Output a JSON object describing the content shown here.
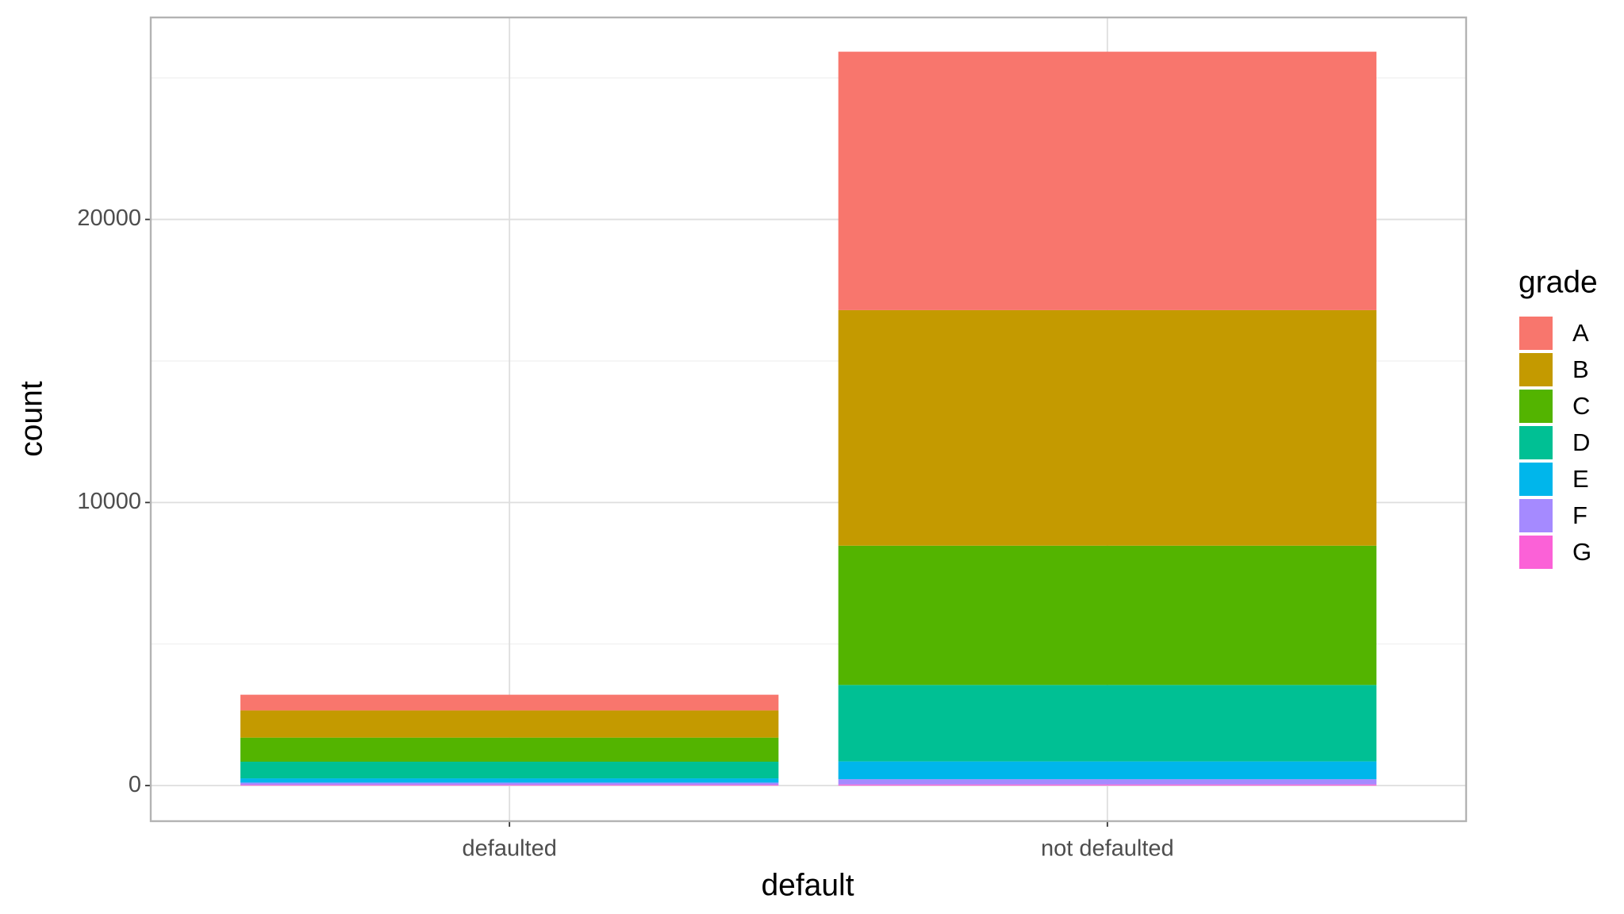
{
  "chart_data": {
    "type": "stacked_bar",
    "x_label": "default",
    "y_label": "count",
    "legend_title": "grade",
    "categories": [
      "defaulted",
      "not defaulted"
    ],
    "series": [
      {
        "name": "A",
        "color": "#F8766D",
        "values": [
          555,
          9130
        ]
      },
      {
        "name": "B",
        "color": "#C49A00",
        "values": [
          960,
          8320
        ]
      },
      {
        "name": "C",
        "color": "#53B400",
        "values": [
          850,
          4920
        ]
      },
      {
        "name": "D",
        "color": "#00C094",
        "values": [
          590,
          2700
        ]
      },
      {
        "name": "E",
        "color": "#00B6EB",
        "values": [
          150,
          630
        ]
      },
      {
        "name": "F",
        "color": "#A58AFF",
        "values": [
          75,
          185
        ]
      },
      {
        "name": "G",
        "color": "#FB61D7",
        "values": [
          30,
          40
        ]
      }
    ],
    "ylim": [
      -1257,
      27135
    ],
    "yticks": [
      0,
      10000,
      20000
    ],
    "minor_yticks": [
      5000,
      15000,
      25000
    ],
    "grid": true,
    "legend": "right"
  }
}
